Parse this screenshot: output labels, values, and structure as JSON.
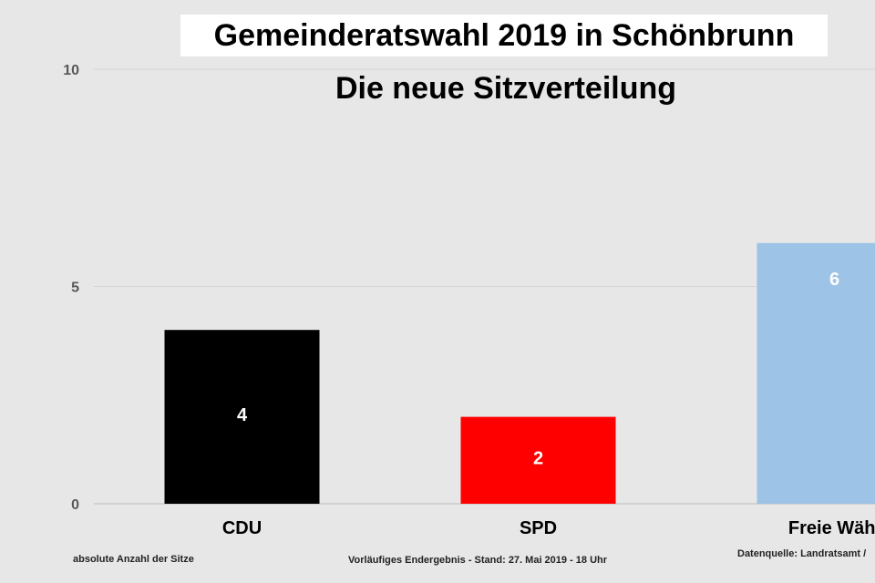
{
  "chart_data": {
    "type": "bar",
    "title": "Gemeinderatswahl 2019 in Schönbrunn",
    "subtitle": "Die neue Sitzverteilung",
    "categories": [
      "CDU",
      "SPD",
      "Freie Wähl"
    ],
    "values": [
      4,
      2,
      6
    ],
    "data_labels": [
      "4",
      "2",
      "6"
    ],
    "bar_colors": [
      "#000000",
      "#ff0000",
      "#9dc3e6"
    ],
    "data_label_color": "#ffffff",
    "ylim": [
      0,
      10
    ],
    "yticks": [
      0,
      5,
      10
    ],
    "ytick_labels": [
      "0",
      "5",
      "10"
    ],
    "grid": true,
    "legend": "none"
  },
  "footnotes": {
    "left": "absolute Anzahl der Sitze",
    "center": "Vorläufiges Endergebnis - Stand: 27. Mai 2019 - 18 Uhr",
    "right": "Datenquelle: Landratsamt /"
  }
}
